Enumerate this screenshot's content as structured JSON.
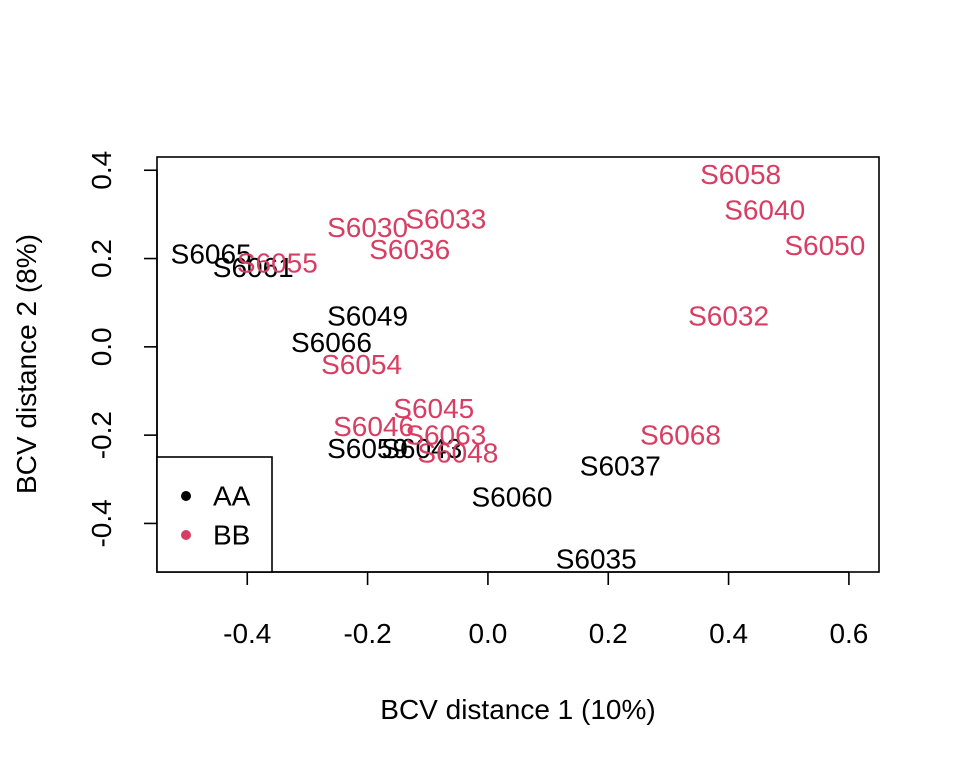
{
  "chart_data": {
    "type": "scatter",
    "title": "",
    "xlabel": "BCV distance 1 (10%)",
    "ylabel": "BCV distance 2 (8%)",
    "xlim": [
      -0.55,
      0.65
    ],
    "ylim": [
      -0.51,
      0.43
    ],
    "x_ticks": [
      -0.4,
      -0.2,
      0.0,
      0.2,
      0.4,
      0.6
    ],
    "x_tick_labels": [
      "-0.4",
      "-0.2",
      "0.0",
      "0.2",
      "0.4",
      "0.6"
    ],
    "y_ticks": [
      -0.4,
      -0.2,
      0.0,
      0.2,
      0.4
    ],
    "y_tick_labels": [
      "-0.4",
      "-0.2",
      "0.0",
      "0.2",
      "0.4"
    ],
    "grid": false,
    "legend_position": "bottom-left",
    "series": [
      {
        "name": "AA",
        "color": "#000000",
        "points": [
          {
            "label": "S6065",
            "x": -0.46,
            "y": 0.21
          },
          {
            "label": "S6061",
            "x": -0.39,
            "y": 0.18
          },
          {
            "label": "S6049",
            "x": -0.2,
            "y": 0.07
          },
          {
            "label": "S6066",
            "x": -0.26,
            "y": 0.01
          },
          {
            "label": "S6059",
            "x": -0.2,
            "y": -0.23
          },
          {
            "label": "S6043",
            "x": -0.11,
            "y": -0.23
          },
          {
            "label": "S6037",
            "x": 0.22,
            "y": -0.27
          },
          {
            "label": "S6060",
            "x": 0.04,
            "y": -0.34
          },
          {
            "label": "S6035",
            "x": 0.18,
            "y": -0.48
          }
        ]
      },
      {
        "name": "BB",
        "color": "#D83E63",
        "points": [
          {
            "label": "S6058",
            "x": 0.42,
            "y": 0.39
          },
          {
            "label": "S6040",
            "x": 0.46,
            "y": 0.31
          },
          {
            "label": "S6050",
            "x": 0.56,
            "y": 0.23
          },
          {
            "label": "S6032",
            "x": 0.4,
            "y": 0.07
          },
          {
            "label": "S6030",
            "x": -0.2,
            "y": 0.27
          },
          {
            "label": "S6033",
            "x": -0.07,
            "y": 0.29
          },
          {
            "label": "S6055",
            "x": -0.35,
            "y": 0.19
          },
          {
            "label": "S6036",
            "x": -0.13,
            "y": 0.22
          },
          {
            "label": "S6054",
            "x": -0.21,
            "y": -0.04
          },
          {
            "label": "S6045",
            "x": -0.09,
            "y": -0.14
          },
          {
            "label": "S6046",
            "x": -0.19,
            "y": -0.18
          },
          {
            "label": "S6063",
            "x": -0.07,
            "y": -0.2
          },
          {
            "label": "S6048",
            "x": -0.05,
            "y": -0.24
          },
          {
            "label": "S6068",
            "x": 0.32,
            "y": -0.2
          }
        ]
      }
    ]
  }
}
